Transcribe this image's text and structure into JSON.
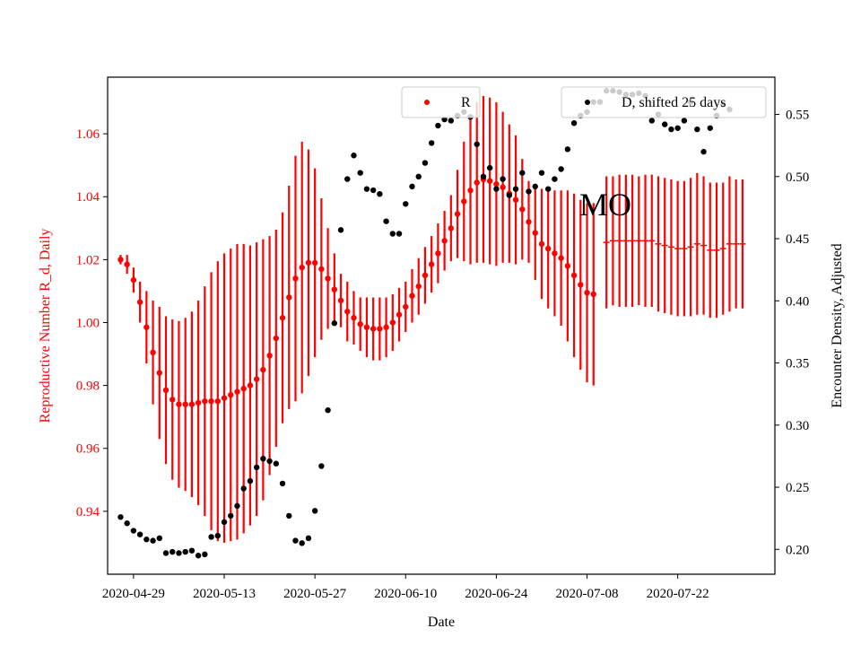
{
  "chart_data": {
    "type": "scatter",
    "annotation": "MO",
    "xlabel": "Date",
    "ylabel_left": "Reproductive Number R_d, Daily",
    "ylabel_right": "Encounter Density, Adjusted",
    "x_ticks": [
      "2020-04-29",
      "2020-05-13",
      "2020-05-27",
      "2020-06-10",
      "2020-06-24",
      "2020-07-08",
      "2020-07-22"
    ],
    "xlim": [
      "2020-04-25",
      "2020-08-06"
    ],
    "ylim_left": [
      0.92,
      1.078
    ],
    "ylim_right": [
      0.18,
      0.58
    ],
    "yticks_left": [
      "0.94",
      "0.96",
      "0.98",
      "1.00",
      "1.02",
      "1.04",
      "1.06"
    ],
    "yticks_right": [
      "0.20",
      "0.25",
      "0.30",
      "0.35",
      "0.40",
      "0.45",
      "0.50",
      "0.55"
    ],
    "colors": {
      "R": "#ff0000",
      "D": "#000000"
    },
    "legend": [
      {
        "label": "R",
        "placement": "upper-center"
      },
      {
        "label": "D, shifted 25 days",
        "placement": "upper-right"
      }
    ],
    "series": [
      {
        "name": "R",
        "axis": "left",
        "style": "points_with_error_bars",
        "start_date": "2020-04-27",
        "values": [
          1.02,
          1.0185,
          1.0135,
          1.0065,
          0.9985,
          0.9905,
          0.984,
          0.9785,
          0.9755,
          0.974,
          0.974,
          0.974,
          0.9745,
          0.975,
          0.975,
          0.975,
          0.976,
          0.977,
          0.978,
          0.979,
          0.98,
          0.982,
          0.985,
          0.9895,
          0.995,
          1.0015,
          1.008,
          1.014,
          1.0175,
          1.019,
          1.019,
          1.017,
          1.014,
          1.0105,
          1.007,
          1.0035,
          1.0015,
          0.9995,
          0.9985,
          0.998,
          0.998,
          0.9985,
          1.0,
          1.0025,
          1.005,
          1.0085,
          1.0115,
          1.015,
          1.0185,
          1.022,
          1.026,
          1.03,
          1.0345,
          1.0385,
          1.042,
          1.0445,
          1.0455,
          1.045,
          1.044,
          1.043,
          1.041,
          1.039,
          1.036,
          1.032,
          1.0285,
          1.025,
          1.0235,
          1.022,
          1.0205,
          1.018,
          1.015,
          1.012,
          1.0095,
          1.009
        ],
        "errors": [
          0.0015,
          0.003,
          0.004,
          0.0065,
          0.0115,
          0.0165,
          0.021,
          0.0235,
          0.0255,
          0.0265,
          0.0275,
          0.0295,
          0.0325,
          0.0365,
          0.041,
          0.0445,
          0.046,
          0.0465,
          0.047,
          0.046,
          0.0445,
          0.0435,
          0.0415,
          0.038,
          0.0345,
          0.0335,
          0.0355,
          0.039,
          0.04,
          0.036,
          0.03,
          0.0225,
          0.016,
          0.0115,
          0.0085,
          0.0095,
          0.0085,
          0.0085,
          0.0095,
          0.01,
          0.01,
          0.0095,
          0.009,
          0.0085,
          0.008,
          0.0085,
          0.009,
          0.009,
          0.009,
          0.0095,
          0.0095,
          0.0105,
          0.014,
          0.019,
          0.0235,
          0.0255,
          0.0265,
          0.0265,
          0.026,
          0.024,
          0.022,
          0.0205,
          0.016,
          0.013,
          0.015,
          0.0175,
          0.019,
          0.02,
          0.0215,
          0.024,
          0.026,
          0.027,
          0.0285,
          0.029
        ]
      },
      {
        "name": "R_continuation",
        "axis": "left",
        "style": "error_bars_only",
        "start_date": "2020-07-11",
        "values": [
          1.0255,
          1.026,
          1.026,
          1.026,
          1.026,
          1.026,
          1.026,
          1.026,
          1.025,
          1.0245,
          1.024,
          1.0235,
          1.0235,
          1.024,
          1.025,
          1.0245,
          1.023,
          1.023,
          1.0235,
          1.025,
          1.025,
          1.025
        ],
        "errors": [
          0.021,
          0.0205,
          0.021,
          0.021,
          0.021,
          0.0205,
          0.021,
          0.021,
          0.0215,
          0.0215,
          0.0215,
          0.0215,
          0.0215,
          0.022,
          0.0225,
          0.022,
          0.0215,
          0.0215,
          0.021,
          0.0215,
          0.0205,
          0.0205
        ]
      },
      {
        "name": "D, shifted 25 days",
        "axis": "right",
        "start_date": "2020-04-27",
        "values": [
          0.226,
          0.221,
          0.215,
          0.212,
          0.208,
          0.207,
          0.209,
          0.197,
          0.198,
          0.197,
          0.198,
          0.199,
          0.195,
          0.196,
          0.21,
          0.211,
          0.222,
          0.227,
          0.235,
          0.249,
          0.255,
          0.266,
          0.273,
          0.271,
          0.269,
          0.253,
          0.227,
          0.207,
          0.205,
          0.209,
          0.231,
          0.267,
          0.312,
          0.382,
          0.457,
          0.498,
          0.517,
          0.503,
          0.49,
          0.489,
          0.486,
          0.464,
          0.454,
          0.454,
          0.478,
          0.492,
          0.5,
          0.511,
          0.527,
          0.541,
          0.546,
          0.545,
          0.549,
          0.552,
          0.548,
          0.526,
          0.5,
          0.507,
          0.49,
          0.498,
          0.485,
          0.49,
          0.503,
          0.488,
          0.492,
          0.503,
          0.49,
          0.498,
          0.506,
          0.522,
          0.543,
          0.549,
          0.552,
          0.56,
          0.56,
          0.569,
          0.569,
          0.568,
          0.566,
          0.566,
          0.567,
          0.565,
          0.545,
          0.55,
          0.542,
          0.538,
          0.539,
          0.545,
          0.56,
          0.538,
          0.52,
          0.539,
          0.549,
          0.558,
          0.554
        ]
      }
    ]
  }
}
